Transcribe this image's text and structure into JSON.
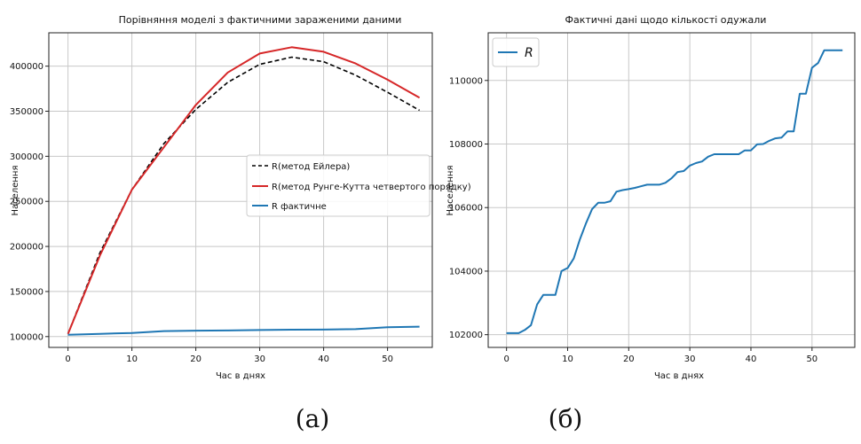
{
  "colors": {
    "euler": "#000000",
    "rk4": "#d62728",
    "actual": "#1f77b4"
  },
  "captions": {
    "a": "(а)",
    "b": "(б)"
  },
  "chart_data": [
    {
      "type": "line",
      "title": "Порівняння моделі з фактичними зараженими даними",
      "xlabel": "Час в днях",
      "ylabel": "Населення",
      "xlim": [
        -3,
        57
      ],
      "ylim": [
        88000,
        437000
      ],
      "xticks": [
        0,
        10,
        20,
        30,
        40,
        50
      ],
      "yticks": [
        100000,
        150000,
        200000,
        250000,
        300000,
        350000,
        400000
      ],
      "grid": true,
      "legend_position": "center-right",
      "series": [
        {
          "name": "R(метод Ейлера)",
          "color_key": "euler",
          "style": "dashed",
          "x": [
            0,
            5,
            10,
            15,
            20,
            25,
            30,
            35,
            40,
            45,
            50,
            55
          ],
          "y": [
            103000,
            193000,
            263000,
            314000,
            352000,
            382000,
            402000,
            410000,
            405000,
            390000,
            371000,
            351000
          ]
        },
        {
          "name": "R(метод Рунге-Кутта четвертого порядку)",
          "color_key": "rk4",
          "style": "solid",
          "x": [
            0,
            5,
            10,
            15,
            20,
            25,
            30,
            35,
            40,
            45,
            50,
            55
          ],
          "y": [
            103000,
            190000,
            263000,
            310000,
            357000,
            393000,
            414000,
            421000,
            416000,
            403000,
            385000,
            365000
          ]
        },
        {
          "name": "R фактичне",
          "color_key": "actual",
          "style": "solid",
          "x": [
            0,
            5,
            10,
            15,
            20,
            25,
            30,
            35,
            40,
            45,
            50,
            55
          ],
          "y": [
            102000,
            103000,
            104000,
            106100,
            106600,
            106800,
            107300,
            107700,
            107800,
            108300,
            110400,
            111000
          ]
        }
      ]
    },
    {
      "type": "line",
      "title": "Фактичні дані щодо кількості одужали",
      "xlabel": "Час в днях",
      "ylabel": "Населення",
      "xlim": [
        -3,
        57
      ],
      "ylim": [
        101600,
        111500
      ],
      "xticks": [
        0,
        10,
        20,
        30,
        40,
        50
      ],
      "yticks": [
        102000,
        104000,
        106000,
        108000,
        110000
      ],
      "grid": true,
      "legend_position": "top-left",
      "series": [
        {
          "name": "R",
          "color_key": "actual",
          "style": "solid",
          "x": [
            0,
            1,
            2,
            3,
            4,
            5,
            6,
            7,
            8,
            9,
            10,
            11,
            12,
            13,
            14,
            15,
            16,
            17,
            18,
            19,
            20,
            21,
            22,
            23,
            24,
            25,
            26,
            27,
            28,
            29,
            30,
            31,
            32,
            33,
            34,
            35,
            36,
            37,
            38,
            39,
            40,
            41,
            42,
            43,
            44,
            45,
            46,
            47,
            48,
            49,
            50,
            51,
            52,
            53,
            54,
            55
          ],
          "y": [
            102050,
            102050,
            102050,
            102150,
            102300,
            102950,
            103250,
            103250,
            103250,
            104000,
            104100,
            104400,
            105000,
            105500,
            105950,
            106150,
            106150,
            106200,
            106500,
            106550,
            106580,
            106620,
            106670,
            106720,
            106720,
            106720,
            106780,
            106920,
            107120,
            107150,
            107320,
            107400,
            107450,
            107600,
            107680,
            107680,
            107680,
            107680,
            107680,
            107800,
            107800,
            107990,
            108000,
            108100,
            108180,
            108200,
            108400,
            108400,
            109580,
            109580,
            110400,
            110550,
            110950,
            110950,
            110950,
            110950
          ]
        }
      ]
    }
  ]
}
